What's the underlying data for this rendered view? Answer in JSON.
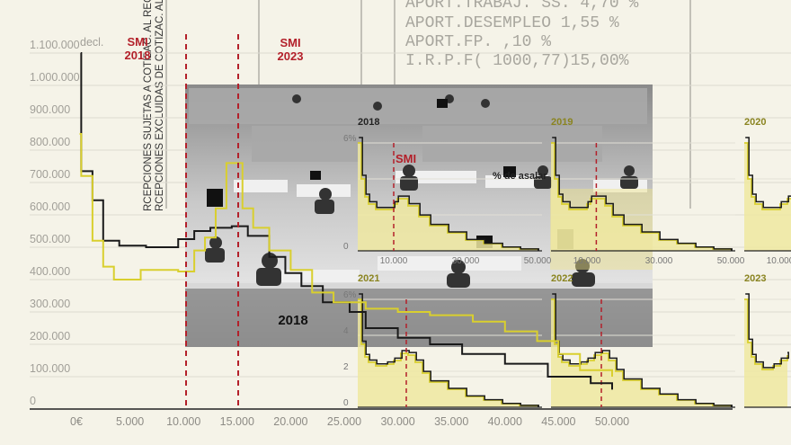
{
  "payslip": {
    "lines": [
      "APORT.TRABAJ. SS.  4,70 %",
      "APORT.DESEMPLEO    1,55 %",
      "APORT.FP.           ,10 %",
      "I.R.P.F(  1000,77)15,00%"
    ]
  },
  "rotated_text": [
    "RCEPCIONES SUJETAS A COTIZAC. AL REG. GEN",
    "RCEPCIONES EXCLUIDAS DE COTIZAC. AL REG. D"
  ],
  "colors": {
    "background": "#f5f3e8",
    "black_series": "#1a1a1a",
    "yellow_series": "#d9cf2e",
    "yellow_fill": "#efe7a0",
    "smi_line": "#b3202a",
    "year_label": "#8a8420"
  },
  "chart_data": [
    {
      "type": "line",
      "title": "",
      "xlabel": "",
      "ylabel": "",
      "y_unit_label": "decl.",
      "xlim": [
        0,
        50000
      ],
      "ylim": [
        0,
        1100000
      ],
      "grid": true,
      "x_ticks": [
        "0€",
        "5.000",
        "10.000",
        "15.000",
        "20.000",
        "25.000",
        "30.000",
        "35.000",
        "40.000",
        "45.000",
        "50.000"
      ],
      "x_tick_values": [
        0,
        5000,
        10000,
        15000,
        20000,
        25000,
        30000,
        35000,
        40000,
        45000,
        50000
      ],
      "y_ticks": [
        "0",
        "100.000",
        "200.000",
        "300.000",
        "400.000",
        "500.000",
        "600.000",
        "700.000",
        "800.000",
        "900.000",
        "1.000.000",
        "1.100.000"
      ],
      "y_tick_values": [
        0,
        100000,
        200000,
        300000,
        400000,
        500000,
        600000,
        700000,
        800000,
        900000,
        1000000,
        1100000
      ],
      "annotations": [
        {
          "label": "SMI 2018",
          "line1": "SMI",
          "line2": "2018",
          "x": 10300
        },
        {
          "label": "SMI 2023",
          "line1": "SMI",
          "line2": "2023",
          "x": 15120
        }
      ],
      "panel_label": "2018",
      "series": [
        {
          "color": "black",
          "step": true,
          "points": [
            [
              400,
              1100000
            ],
            [
              450,
              735000
            ],
            [
              1500,
              645000
            ],
            [
              2500,
              520000
            ],
            [
              4000,
              505000
            ],
            [
              6500,
              500000
            ],
            [
              9500,
              525000
            ],
            [
              11000,
              550000
            ],
            [
              12500,
              560000
            ],
            [
              14500,
              565000
            ],
            [
              16000,
              535000
            ],
            [
              18000,
              470000
            ],
            [
              19500,
              420000
            ],
            [
              21000,
              380000
            ],
            [
              23000,
              330000
            ],
            [
              25500,
              300000
            ],
            [
              27000,
              250000
            ],
            [
              30000,
              220000
            ],
            [
              33000,
              200000
            ],
            [
              36000,
              170000
            ],
            [
              40000,
              140000
            ],
            [
              44000,
              100000
            ],
            [
              48000,
              80000
            ],
            [
              50000,
              60000
            ]
          ]
        },
        {
          "color": "yellow",
          "step": true,
          "points": [
            [
              300,
              850000
            ],
            [
              450,
              720000
            ],
            [
              1500,
              520000
            ],
            [
              2500,
              440000
            ],
            [
              3500,
              400000
            ],
            [
              6000,
              430000
            ],
            [
              9500,
              425000
            ],
            [
              11000,
              490000
            ],
            [
              12000,
              530000
            ],
            [
              13000,
              620000
            ],
            [
              14000,
              760000
            ],
            [
              15500,
              620000
            ],
            [
              16500,
              560000
            ],
            [
              18000,
              490000
            ],
            [
              20000,
              430000
            ],
            [
              22000,
              360000
            ],
            [
              24000,
              330000
            ],
            [
              27000,
              310000
            ],
            [
              30000,
              300000
            ],
            [
              33000,
              290000
            ],
            [
              37000,
              270000
            ],
            [
              40000,
              240000
            ],
            [
              43000,
              210000
            ],
            [
              45000,
              170000
            ],
            [
              47000,
              120000
            ],
            [
              50000,
              100000
            ]
          ]
        }
      ]
    },
    {
      "type": "area",
      "title": "2018",
      "ylim": [
        0,
        6
      ],
      "xlim": [
        0,
        50000
      ],
      "y_ticks": [
        "0",
        "6%"
      ],
      "x_ticks": [
        "10.000",
        "30.000",
        "50.000"
      ],
      "annotations": [
        {
          "label": "SMI",
          "x": 10000
        }
      ],
      "series_label": "% de asalar",
      "points": [
        [
          0,
          6
        ],
        [
          1000,
          4
        ],
        [
          2000,
          3
        ],
        [
          3000,
          2.6
        ],
        [
          5000,
          2.3
        ],
        [
          8000,
          2.3
        ],
        [
          10000,
          2.6
        ],
        [
          11000,
          2.9
        ],
        [
          12000,
          2.9
        ],
        [
          14000,
          2.5
        ],
        [
          17000,
          1.9
        ],
        [
          20000,
          1.4
        ],
        [
          25000,
          1.0
        ],
        [
          30000,
          0.6
        ],
        [
          35000,
          0.4
        ],
        [
          40000,
          0.2
        ],
        [
          45000,
          0.1
        ],
        [
          50000,
          0.05
        ]
      ]
    },
    {
      "type": "area",
      "title": "2019",
      "ylim": [
        0,
        6
      ],
      "xlim": [
        0,
        50000
      ],
      "x_ticks": [
        "10.000",
        "30.000",
        "50.000"
      ],
      "annotations": [
        {
          "label": "SMI",
          "x": 12600
        }
      ],
      "points": [
        [
          0,
          6
        ],
        [
          1000,
          4
        ],
        [
          2000,
          3
        ],
        [
          3000,
          2.6
        ],
        [
          5000,
          2.3
        ],
        [
          8000,
          2.3
        ],
        [
          10000,
          2.6
        ],
        [
          11000,
          2.9
        ],
        [
          13000,
          2.9
        ],
        [
          15000,
          2.5
        ],
        [
          17000,
          1.9
        ],
        [
          20000,
          1.4
        ],
        [
          25000,
          1.0
        ],
        [
          30000,
          0.6
        ],
        [
          35000,
          0.4
        ],
        [
          40000,
          0.2
        ],
        [
          45000,
          0.1
        ],
        [
          50000,
          0.05
        ]
      ]
    },
    {
      "type": "area",
      "title": "2020",
      "ylim": [
        0,
        6
      ],
      "xlim": [
        0,
        50000
      ],
      "x_ticks": [
        "10.000"
      ],
      "points": [
        [
          0,
          6
        ],
        [
          1000,
          4
        ],
        [
          2000,
          3
        ],
        [
          3000,
          2.6
        ],
        [
          5000,
          2.3
        ],
        [
          8000,
          2.3
        ],
        [
          10000,
          2.6
        ],
        [
          12000,
          2.9
        ],
        [
          14000,
          2.5
        ]
      ]
    },
    {
      "type": "area",
      "title": "2021",
      "ylim": [
        0,
        6
      ],
      "xlim": [
        0,
        50000
      ],
      "y_ticks": [
        "0",
        "2",
        "4",
        "6%"
      ],
      "annotations": [
        {
          "label": "SMI",
          "x": 13500
        }
      ],
      "points": [
        [
          0,
          6
        ],
        [
          1000,
          3.5
        ],
        [
          2000,
          2.8
        ],
        [
          3000,
          2.5
        ],
        [
          5000,
          2.3
        ],
        [
          8000,
          2.4
        ],
        [
          10000,
          2.6
        ],
        [
          12000,
          3.0
        ],
        [
          14000,
          2.9
        ],
        [
          16000,
          2.5
        ],
        [
          18000,
          1.9
        ],
        [
          20000,
          1.4
        ],
        [
          25000,
          1.0
        ],
        [
          30000,
          0.6
        ],
        [
          35000,
          0.4
        ],
        [
          40000,
          0.2
        ],
        [
          45000,
          0.1
        ],
        [
          50000,
          0.05
        ]
      ]
    },
    {
      "type": "area",
      "title": "2022",
      "ylim": [
        0,
        6
      ],
      "xlim": [
        0,
        50000
      ],
      "annotations": [
        {
          "label": "SMI",
          "x": 14000
        }
      ],
      "points": [
        [
          0,
          6
        ],
        [
          1000,
          3.5
        ],
        [
          2000,
          2.8
        ],
        [
          3000,
          2.5
        ],
        [
          5000,
          2.3
        ],
        [
          8000,
          2.4
        ],
        [
          10000,
          2.6
        ],
        [
          12000,
          2.9
        ],
        [
          14000,
          3.0
        ],
        [
          16000,
          2.6
        ],
        [
          18000,
          2.0
        ],
        [
          20000,
          1.5
        ],
        [
          25000,
          1.0
        ],
        [
          30000,
          0.7
        ],
        [
          35000,
          0.4
        ],
        [
          40000,
          0.2
        ],
        [
          45000,
          0.1
        ],
        [
          50000,
          0.05
        ]
      ]
    },
    {
      "type": "area",
      "title": "2023",
      "ylim": [
        0,
        6
      ],
      "xlim": [
        0,
        50000
      ],
      "points": [
        [
          0,
          6
        ],
        [
          1000,
          3.6
        ],
        [
          2000,
          2.8
        ],
        [
          3000,
          2.4
        ],
        [
          5000,
          2.1
        ],
        [
          8000,
          2.3
        ],
        [
          10000,
          2.6
        ],
        [
          12000,
          2.9
        ]
      ]
    }
  ],
  "photo": {
    "description_label": ""
  }
}
